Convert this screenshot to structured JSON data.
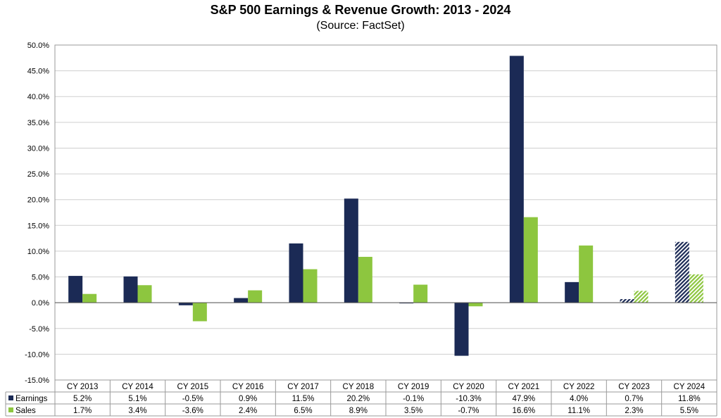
{
  "chart_data": {
    "type": "bar",
    "title": "S&P 500 Earnings & Revenue Growth:  2013 - 2024",
    "subtitle": "(Source: FactSet)",
    "categories": [
      "CY 2013",
      "CY 2014",
      "CY 2015",
      "CY 2016",
      "CY 2017",
      "CY 2018",
      "CY 2019",
      "CY 2020",
      "CY 2021",
      "CY 2022",
      "CY 2023",
      "CY 2024"
    ],
    "series": [
      {
        "name": "Earnings",
        "color": "#1b2a55",
        "values": [
          5.2,
          5.1,
          -0.5,
          0.9,
          11.5,
          20.2,
          -0.1,
          -10.3,
          47.9,
          4.0,
          0.7,
          11.8
        ],
        "labels": [
          "5.2%",
          "5.1%",
          "-0.5%",
          "0.9%",
          "11.5%",
          "20.2%",
          "-0.1%",
          "-10.3%",
          "47.9%",
          "4.0%",
          "0.7%",
          "11.8%"
        ]
      },
      {
        "name": "Sales",
        "color": "#8dc63f",
        "values": [
          1.7,
          3.4,
          -3.6,
          2.4,
          6.5,
          8.9,
          3.5,
          -0.7,
          16.6,
          11.1,
          2.3,
          5.5
        ],
        "labels": [
          "1.7%",
          "3.4%",
          "-3.6%",
          "2.4%",
          "6.5%",
          "8.9%",
          "3.5%",
          "-0.7%",
          "16.6%",
          "11.1%",
          "2.3%",
          "5.5%"
        ]
      }
    ],
    "estimate_categories": [
      "CY 2023",
      "CY 2024"
    ],
    "ylim": [
      -15,
      50
    ],
    "yticks": [
      "50.0%",
      "45.0%",
      "40.0%",
      "35.0%",
      "30.0%",
      "25.0%",
      "20.0%",
      "15.0%",
      "10.0%",
      "5.0%",
      "0.0%",
      "-5.0%",
      "-10.0%",
      "-15.0%"
    ],
    "ytick_values": [
      50,
      45,
      40,
      35,
      30,
      25,
      20,
      15,
      10,
      5,
      0,
      -5,
      -10,
      -15
    ],
    "grid": true,
    "legend": "data-table"
  }
}
